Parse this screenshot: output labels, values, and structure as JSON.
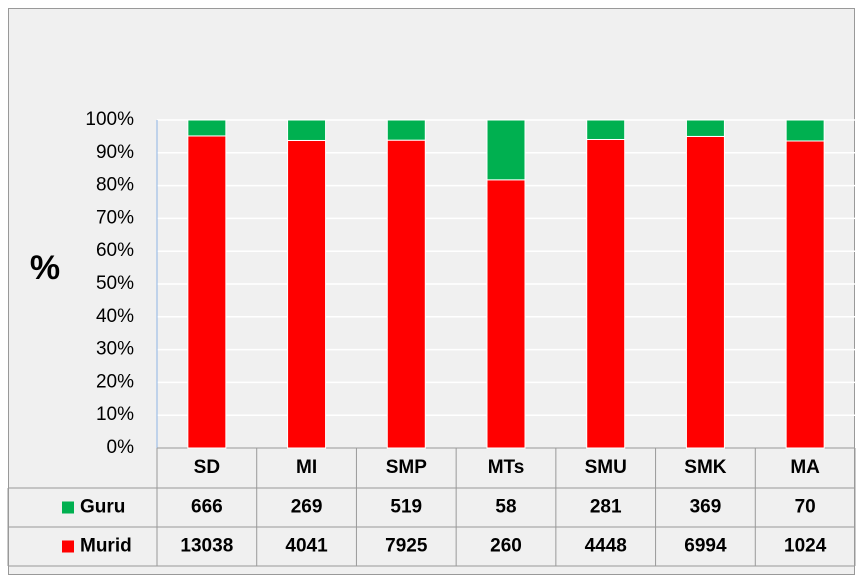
{
  "chart_data": {
    "type": "stacked_percent_bar",
    "y_label": "%",
    "categories": [
      "SD",
      "MI",
      "SMP",
      "MTs",
      "SMU",
      "SMK",
      "MA"
    ],
    "series": [
      {
        "name": "Guru",
        "color": "#00b050",
        "values": [
          666,
          269,
          519,
          58,
          281,
          369,
          70
        ]
      },
      {
        "name": "Murid",
        "color": "#ff0000",
        "values": [
          13038,
          4041,
          7925,
          260,
          4448,
          6994,
          1024
        ]
      }
    ],
    "ylim": [
      0,
      100
    ],
    "yticks": [
      {
        "value": 0,
        "label": "0%"
      },
      {
        "value": 10,
        "label": "10%"
      },
      {
        "value": 20,
        "label": "20%"
      },
      {
        "value": 30,
        "label": "30%"
      },
      {
        "value": 40,
        "label": "40%"
      },
      {
        "value": 50,
        "label": "50%"
      },
      {
        "value": 60,
        "label": "60%"
      },
      {
        "value": 70,
        "label": "70%"
      },
      {
        "value": 80,
        "label": "80%"
      },
      {
        "value": 90,
        "label": "90%"
      },
      {
        "value": 100,
        "label": "100%"
      }
    ],
    "grid": true
  }
}
